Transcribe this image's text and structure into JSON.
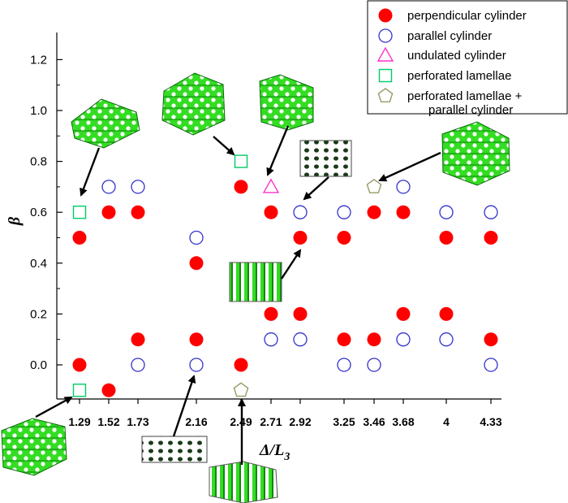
{
  "chart_data": {
    "type": "scatter",
    "xlabel": "Δ/L3",
    "ylabel": "β",
    "x_ticks": [
      "1.29",
      "1.52",
      "1.73",
      "2.16",
      "2.49",
      "2.71",
      "2.92",
      "3.25",
      "3.46",
      "3.68",
      "4",
      "4.33"
    ],
    "y_ticks": [
      "0.0",
      "0.2",
      "0.4",
      "0.6",
      "0.8",
      "1.0",
      "1.2"
    ],
    "ylim": [
      -0.14,
      1.26
    ],
    "series": [
      {
        "name": "perpendicular cylinder",
        "marker": "filled-circle",
        "color": "#ff0000",
        "points": [
          {
            "x": 1.29,
            "y": 0.5
          },
          {
            "x": 1.29,
            "y": 0.0
          },
          {
            "x": 1.52,
            "y": 0.6
          },
          {
            "x": 1.52,
            "y": -0.1
          },
          {
            "x": 1.73,
            "y": 0.6
          },
          {
            "x": 1.73,
            "y": 0.1
          },
          {
            "x": 2.16,
            "y": 0.4
          },
          {
            "x": 2.16,
            "y": 0.1
          },
          {
            "x": 2.49,
            "y": 0.7
          },
          {
            "x": 2.49,
            "y": 0.0
          },
          {
            "x": 2.71,
            "y": 0.6
          },
          {
            "x": 2.71,
            "y": 0.2
          },
          {
            "x": 2.92,
            "y": 0.5
          },
          {
            "x": 2.92,
            "y": 0.2
          },
          {
            "x": 3.25,
            "y": 0.5
          },
          {
            "x": 3.25,
            "y": 0.1
          },
          {
            "x": 3.46,
            "y": 0.6
          },
          {
            "x": 3.46,
            "y": 0.1
          },
          {
            "x": 3.68,
            "y": 0.6
          },
          {
            "x": 3.68,
            "y": 0.2
          },
          {
            "x": 4,
            "y": 0.5
          },
          {
            "x": 4,
            "y": 0.2
          },
          {
            "x": 4.33,
            "y": 0.5
          },
          {
            "x": 4.33,
            "y": 0.1
          }
        ]
      },
      {
        "name": "parallel cylinder",
        "marker": "open-circle",
        "color": "#3333cc",
        "points": [
          {
            "x": 1.52,
            "y": 0.7
          },
          {
            "x": 1.73,
            "y": 0.7
          },
          {
            "x": 1.73,
            "y": 0.0
          },
          {
            "x": 2.16,
            "y": 0.5
          },
          {
            "x": 2.16,
            "y": 0.0
          },
          {
            "x": 2.71,
            "y": 0.1
          },
          {
            "x": 2.92,
            "y": 0.6
          },
          {
            "x": 2.92,
            "y": 0.1
          },
          {
            "x": 3.25,
            "y": 0.6
          },
          {
            "x": 3.25,
            "y": 0.0
          },
          {
            "x": 3.46,
            "y": 0.0
          },
          {
            "x": 3.68,
            "y": 0.7
          },
          {
            "x": 3.68,
            "y": 0.1
          },
          {
            "x": 4,
            "y": 0.6
          },
          {
            "x": 4,
            "y": 0.1
          },
          {
            "x": 4.33,
            "y": 0.6
          },
          {
            "x": 4.33,
            "y": 0.0
          }
        ]
      },
      {
        "name": "undulated cylinder",
        "marker": "open-triangle",
        "color": "#ff33cc",
        "points": [
          {
            "x": 2.71,
            "y": 0.7
          }
        ]
      },
      {
        "name": "perforated lamellae",
        "marker": "open-square",
        "color": "#00cc66",
        "points": [
          {
            "x": 1.29,
            "y": 0.6
          },
          {
            "x": 1.29,
            "y": -0.1
          },
          {
            "x": 2.49,
            "y": 0.8
          }
        ]
      },
      {
        "name": "perforated lamellae + parallel cylinder",
        "legend_lines": [
          "perforated lamellae +",
          "parallel cylinder"
        ],
        "marker": "open-pentagon",
        "color": "#999966",
        "points": [
          {
            "x": 3.46,
            "y": 0.7
          },
          {
            "x": 2.49,
            "y": -0.1
          }
        ]
      }
    ],
    "legend": "top-right",
    "grid": false
  }
}
